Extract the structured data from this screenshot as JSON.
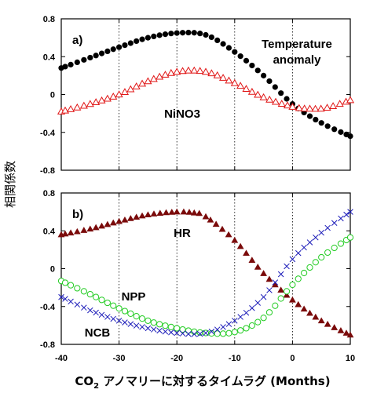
{
  "y_axis_title": "相関係数",
  "x_axis_title": {
    "prefix": "CO",
    "subscript": "2",
    "suffix": " アノマリーに対するタイムラグ (Months)"
  },
  "colors": {
    "black": "#000000",
    "red": "#e01515",
    "maroon": "#7a0a0a",
    "green": "#22cc22",
    "blue": "#1a1ab8"
  },
  "chart_data": [
    {
      "type": "line",
      "panel_label": "a)",
      "xlim": [
        -40,
        10
      ],
      "ylim": [
        -0.8,
        0.8
      ],
      "x_ticks": [
        -40,
        -30,
        -20,
        -10,
        0,
        10
      ],
      "y_ticks": [
        0.8,
        0.4,
        0,
        -0.4,
        -0.8
      ],
      "y_tick_labels": [
        "0.8",
        "0.4",
        "0",
        "-0.4",
        "-0.8"
      ],
      "vlines": [
        -30,
        -20,
        -10,
        0
      ],
      "annotations": {
        "temperature_line1": "Temperature",
        "temperature_line2": "anomaly",
        "nino3": "NiNO3"
      },
      "series": [
        {
          "key": "temperature",
          "marker": "filled-circle",
          "color": "#000000",
          "x": [
            -40,
            -35,
            -30,
            -25,
            -20,
            -15,
            -10,
            -5,
            0,
            5,
            10
          ],
          "y": [
            0.28,
            0.39,
            0.5,
            0.6,
            0.65,
            0.63,
            0.45,
            0.2,
            -0.1,
            -0.3,
            -0.44
          ]
        },
        {
          "key": "nino3",
          "marker": "open-triangle",
          "color": "#e01515",
          "x": [
            -40,
            -35,
            -30,
            -25,
            -20,
            -15,
            -10,
            -5,
            0,
            3,
            6,
            10
          ],
          "y": [
            -0.18,
            -0.1,
            0.0,
            0.14,
            0.24,
            0.24,
            0.12,
            -0.03,
            -0.13,
            -0.15,
            -0.14,
            -0.06
          ]
        }
      ]
    },
    {
      "type": "line",
      "panel_label": "b)",
      "xlim": [
        -40,
        10
      ],
      "ylim": [
        -0.8,
        0.8
      ],
      "x_ticks": [
        -40,
        -30,
        -20,
        -10,
        0,
        10
      ],
      "x_tick_labels": [
        "-40",
        "-30",
        "-20",
        "-10",
        "0",
        "10"
      ],
      "y_ticks": [
        0.8,
        0.4,
        0,
        -0.4,
        -0.8
      ],
      "y_tick_labels": [
        "0.8",
        "0.4",
        "0",
        "-0.4",
        "-0.8"
      ],
      "vlines": [
        -30,
        -20,
        -10,
        0
      ],
      "annotations": {
        "hr": "HR",
        "npp": "NPP",
        "ncb": "NCB"
      },
      "series": [
        {
          "key": "HR",
          "marker": "filled-triangle",
          "color": "#7a0a0a",
          "x": [
            -40,
            -35,
            -30,
            -25,
            -20,
            -17,
            -15,
            -10,
            -5,
            0,
            5,
            10
          ],
          "y": [
            0.36,
            0.42,
            0.5,
            0.57,
            0.6,
            0.59,
            0.55,
            0.3,
            -0.05,
            -0.33,
            -0.55,
            -0.7
          ]
        },
        {
          "key": "NPP",
          "marker": "open-circle",
          "color": "#22cc22",
          "x": [
            -40,
            -35,
            -30,
            -25,
            -20,
            -15,
            -10,
            -5,
            0,
            5,
            10
          ],
          "y": [
            -0.13,
            -0.27,
            -0.42,
            -0.55,
            -0.63,
            -0.68,
            -0.67,
            -0.52,
            -0.17,
            0.12,
            0.33
          ]
        },
        {
          "key": "NCB",
          "marker": "cross",
          "color": "#1a1ab8",
          "x": [
            -40,
            -35,
            -30,
            -25,
            -20,
            -15,
            -10,
            -5,
            0,
            5,
            10
          ],
          "y": [
            -0.3,
            -0.44,
            -0.55,
            -0.63,
            -0.68,
            -0.68,
            -0.55,
            -0.3,
            0.1,
            0.38,
            0.6
          ]
        }
      ]
    }
  ]
}
